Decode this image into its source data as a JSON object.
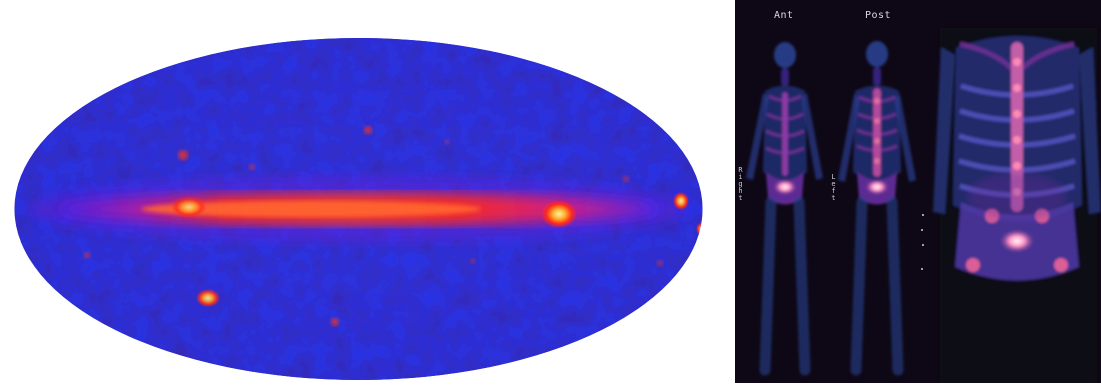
{
  "images": {
    "left": {
      "kind": "all-sky-map",
      "colors": {
        "background": "#ffffff",
        "sky_dark": "#0d0a5f",
        "sky_blue": "#1f2fd8",
        "band_red": "#ff2a1a",
        "band_hot": "#ffd96a"
      }
    },
    "right": {
      "kind": "bone-scan",
      "labels": {
        "ant": "Ant",
        "post": "Post",
        "right": "Right",
        "left": "Left"
      },
      "colors": {
        "background": "#0a0610",
        "body_blue": "#243b92",
        "body_purple": "#6d2d93",
        "hot_pink": "#d24b8e",
        "hot_white": "#fff3f7"
      }
    }
  }
}
